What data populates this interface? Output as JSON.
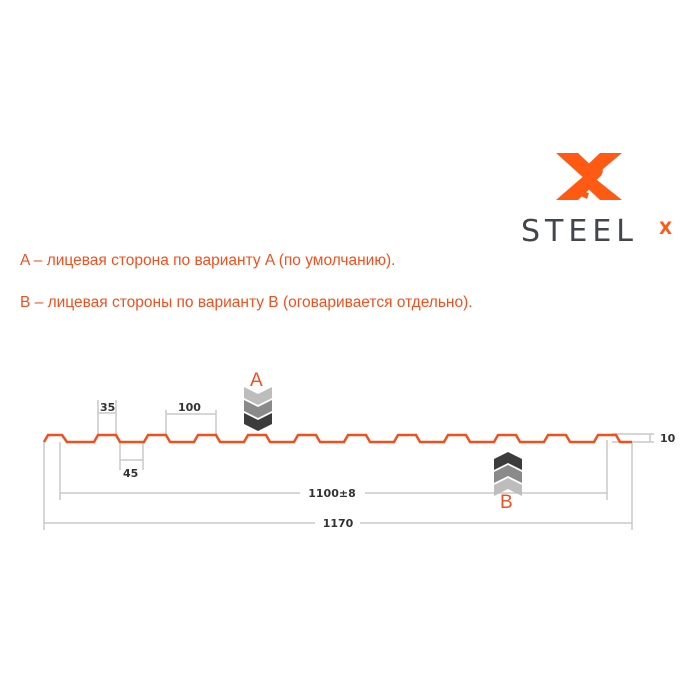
{
  "logo": {
    "text": "STEEL",
    "superscript": "X",
    "colors": {
      "orange": "#ff5a14",
      "gray": "#41464d"
    }
  },
  "notes": [
    "A – лицевая сторона по варианту A (по умолчанию).",
    "B – лицевая стороны по варианту B (оговаривается отдельно)."
  ],
  "diagram": {
    "profile_color": "#f0501e",
    "dimension_color": "#c8c8c8",
    "dims": {
      "top_width": "35",
      "bottom_width": "45",
      "pitch": "100",
      "height": "10",
      "useful_width": "1100±8",
      "total_width": "1170"
    },
    "side_a": {
      "label": "A",
      "arrow": "chevrons-down-icon"
    },
    "side_b": {
      "label": "B",
      "arrow": "chevrons-up-icon"
    }
  }
}
